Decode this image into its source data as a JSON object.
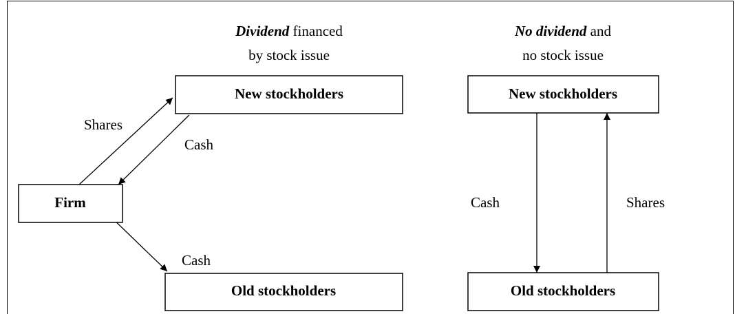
{
  "left": {
    "title": {
      "emphasis": "Dividend",
      "rest": "financed",
      "line2": "by stock issue"
    },
    "nodes": [
      {
        "label": "New stockholders"
      },
      {
        "label": "Firm"
      },
      {
        "label": "Old stockholders"
      }
    ],
    "edges": [
      {
        "label": "Shares"
      },
      {
        "label": "Cash"
      },
      {
        "label": "Cash"
      }
    ]
  },
  "right": {
    "title": {
      "emphasis": "No dividend",
      "rest": "and",
      "line2": "no stock issue"
    },
    "nodes": [
      {
        "label": "New stockholders"
      },
      {
        "label": "Old stockholders"
      }
    ],
    "edges": [
      {
        "label": "Cash"
      },
      {
        "label": "Shares"
      }
    ]
  }
}
